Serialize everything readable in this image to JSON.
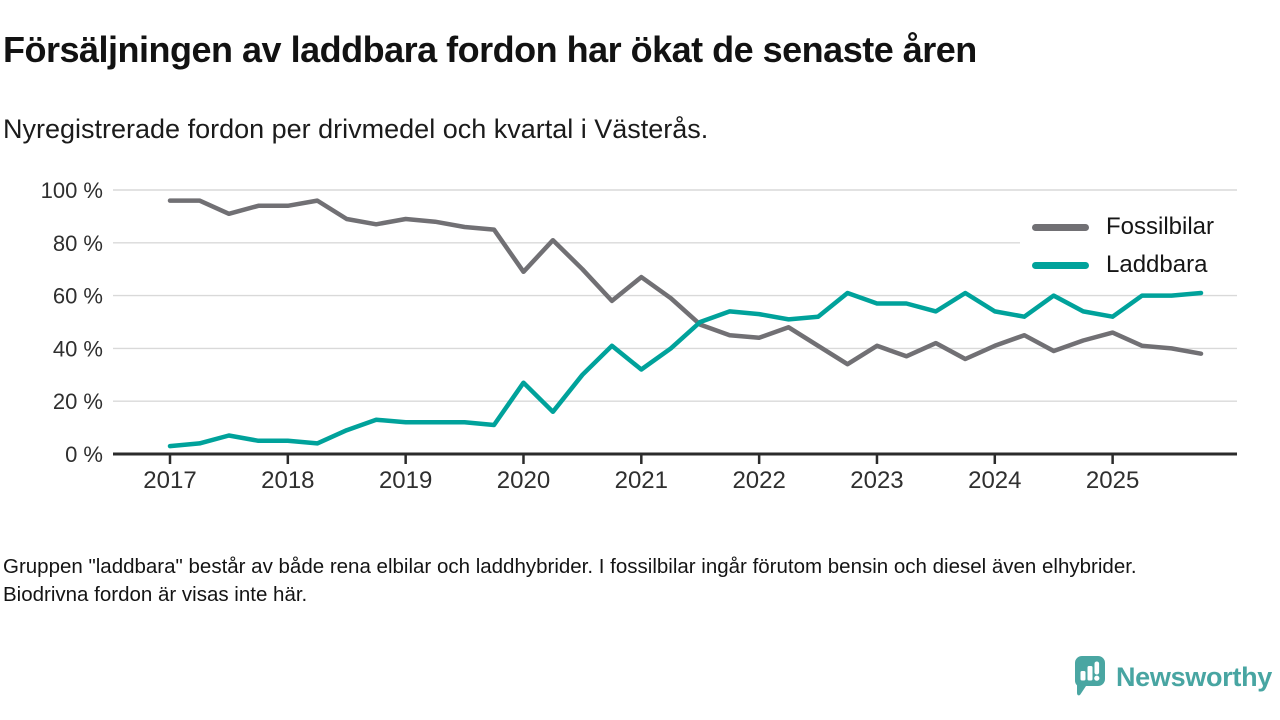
{
  "header": {
    "title": "Försäljningen av laddbara fordon har ökat de senaste åren",
    "subtitle": "Nyregistrerade fordon per drivmedel och kvartal i Västerås."
  },
  "chart_data": {
    "type": "line",
    "title": "Försäljningen av laddbara fordon har ökat de senaste åren",
    "subtitle": "Nyregistrerade fordon per drivmedel och kvartal i Västerås.",
    "x_interval": "quarterly",
    "x_start": "2017 Q1",
    "x_end": "2025 Q4",
    "x_tick_labels": [
      "2017",
      "2018",
      "2019",
      "2020",
      "2021",
      "2022",
      "2023",
      "2024",
      "2025"
    ],
    "y_ticks": [
      0,
      20,
      40,
      60,
      80,
      100
    ],
    "y_tick_labels": [
      "0 %",
      "20 %",
      "40 %",
      "60 %",
      "80 %",
      "100 %"
    ],
    "ylim": [
      0,
      100
    ],
    "grid": "horizontal",
    "legend_position": "top-right",
    "series": [
      {
        "name": "Fossilbilar",
        "color": "#717074",
        "values": [
          96,
          96,
          91,
          94,
          94,
          96,
          89,
          87,
          89,
          88,
          86,
          85,
          69,
          81,
          70,
          58,
          67,
          59,
          49,
          45,
          44,
          48,
          41,
          34,
          41,
          37,
          42,
          36,
          41,
          45,
          39,
          43,
          46,
          41,
          40,
          38
        ]
      },
      {
        "name": "Laddbara",
        "color": "#00a29b",
        "values": [
          3,
          4,
          7,
          5,
          5,
          4,
          9,
          13,
          12,
          12,
          12,
          11,
          27,
          16,
          30,
          41,
          32,
          40,
          50,
          54,
          53,
          51,
          52,
          61,
          57,
          57,
          54,
          61,
          54,
          52,
          60,
          54,
          52,
          60,
          60,
          61
        ]
      }
    ],
    "axis_color": "#2b2b2b",
    "gridline_color": "#d9d9d9"
  },
  "footer": {
    "note": "Gruppen \"laddbara\" består av både rena elbilar och laddhybrider. I fossilbilar ingår förutom bensin och diesel även elhybrider. Biodrivna fordon är visas inte här."
  },
  "logo": {
    "text": "Newsworthy",
    "color": "#48a5a2"
  }
}
